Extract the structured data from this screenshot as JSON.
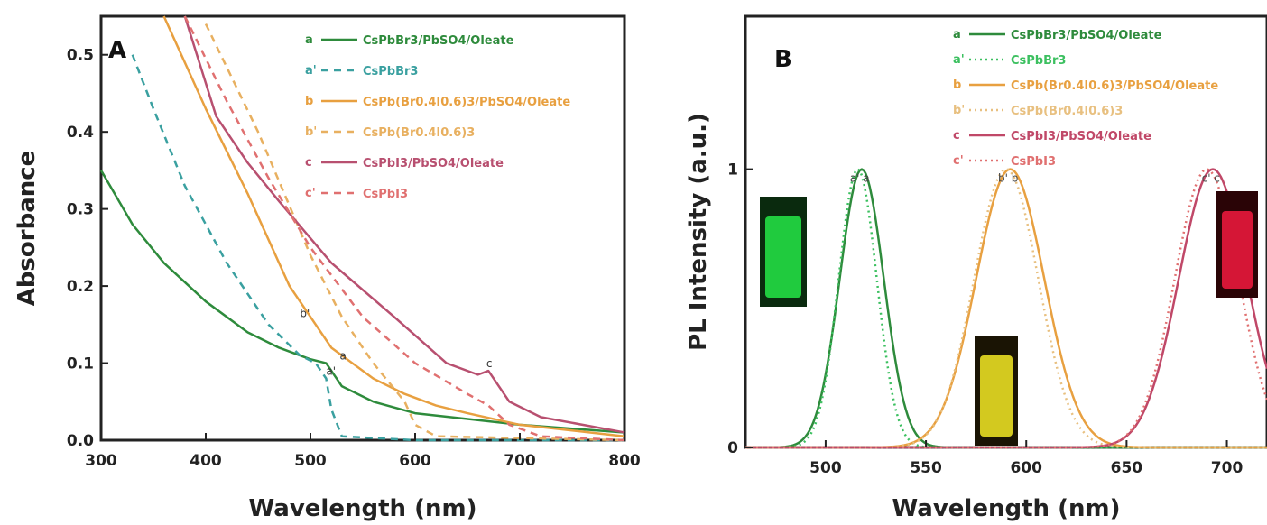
{
  "chart_data": [
    {
      "panel": "A",
      "type": "line",
      "xlabel": "Wavelength (nm)",
      "ylabel": "Absorbance",
      "xlim": [
        300,
        800
      ],
      "ylim": [
        0.0,
        0.55
      ],
      "xticks": [
        300,
        400,
        500,
        600,
        700,
        800
      ],
      "yticks": [
        0.0,
        0.1,
        0.2,
        0.3,
        0.4,
        0.5
      ],
      "ytick_labels": [
        "0.0",
        "0.1",
        "0.2",
        "0.3",
        "0.4",
        "0.5"
      ],
      "legend_position": "top-right",
      "series": [
        {
          "name": "CsPbBr3/PbSO4/Oleate",
          "tag": "a",
          "color": "#2e8b3c",
          "dash": "solid",
          "x": [
            300,
            330,
            360,
            400,
            440,
            470,
            500,
            515,
            530,
            560,
            600,
            700,
            800
          ],
          "y": [
            0.35,
            0.28,
            0.23,
            0.18,
            0.14,
            0.12,
            0.105,
            0.1,
            0.07,
            0.05,
            0.035,
            0.02,
            0.01
          ]
        },
        {
          "name": "CsPbBr3",
          "tag": "a'",
          "color": "#3aa0a0",
          "dash": "dashed",
          "x": [
            330,
            350,
            380,
            420,
            460,
            490,
            505,
            515,
            520,
            530,
            600,
            800
          ],
          "y": [
            0.5,
            0.43,
            0.33,
            0.23,
            0.15,
            0.11,
            0.1,
            0.08,
            0.04,
            0.005,
            0.0,
            0.0
          ]
        },
        {
          "name": "CsPb(Br0.4I0.6)3/PbSO4/Oleate",
          "tag": "b",
          "color": "#e8a040",
          "dash": "solid",
          "x": [
            360,
            400,
            440,
            480,
            520,
            560,
            590,
            620,
            650,
            700,
            800
          ],
          "y": [
            0.56,
            0.43,
            0.32,
            0.2,
            0.12,
            0.08,
            0.06,
            0.045,
            0.035,
            0.02,
            0.005
          ]
        },
        {
          "name": "CsPb(Br0.4I0.6)3",
          "tag": "b'",
          "color": "#e8b060",
          "dash": "dashed",
          "x": [
            400,
            450,
            500,
            530,
            560,
            590,
            600,
            620,
            800
          ],
          "y": [
            0.54,
            0.4,
            0.24,
            0.16,
            0.1,
            0.05,
            0.02,
            0.005,
            0.0
          ]
        },
        {
          "name": "CsPbI3/PbSO4/Oleate",
          "tag": "c",
          "color": "#b85070",
          "dash": "solid",
          "x": [
            380,
            410,
            440,
            470,
            520,
            580,
            630,
            660,
            670,
            690,
            720,
            800
          ],
          "y": [
            0.55,
            0.42,
            0.36,
            0.31,
            0.23,
            0.16,
            0.1,
            0.085,
            0.09,
            0.05,
            0.03,
            0.01
          ]
        },
        {
          "name": "CsPbI3",
          "tag": "c'",
          "color": "#e07070",
          "dash": "dashed",
          "x": [
            380,
            420,
            460,
            500,
            550,
            600,
            650,
            670,
            690,
            720,
            800
          ],
          "y": [
            0.55,
            0.44,
            0.34,
            0.25,
            0.16,
            0.1,
            0.06,
            0.045,
            0.02,
            0.005,
            0.0
          ]
        }
      ],
      "annotations": [
        {
          "text": "a'",
          "x": 515,
          "y": 0.085
        },
        {
          "text": "a",
          "x": 528,
          "y": 0.105
        },
        {
          "text": "b'",
          "x": 490,
          "y": 0.16
        },
        {
          "text": "c",
          "x": 668,
          "y": 0.095
        }
      ]
    },
    {
      "panel": "B",
      "type": "line",
      "xlabel": "Wavelength (nm)",
      "ylabel": "PL Intensity (a.u.)",
      "xlim": [
        460,
        720
      ],
      "ylim": [
        0,
        1.55
      ],
      "xticks": [
        500,
        550,
        600,
        650,
        700
      ],
      "yticks": [
        0,
        1
      ],
      "ytick_labels": [
        "0",
        "1"
      ],
      "legend_position": "top-right",
      "series": [
        {
          "name": "CsPbBr3/PbSO4/Oleate",
          "tag": "a",
          "color": "#2e8b3c",
          "dash": "solid",
          "center": 518,
          "width": 11,
          "peak": 1.0
        },
        {
          "name": "CsPbBr3",
          "tag": "a'",
          "color": "#3cc060",
          "dash": "dotted",
          "center": 516,
          "width": 9.5,
          "peak": 1.0
        },
        {
          "name": "CsPb(Br0.4I0.6)3/PbSO4/Oleate",
          "tag": "b",
          "color": "#e8a040",
          "dash": "solid",
          "center": 592,
          "width": 17,
          "peak": 1.0
        },
        {
          "name": "CsPb(Br0.4I0.6)3",
          "tag": "b'",
          "color": "#e8c080",
          "dash": "dotted",
          "center": 590,
          "width": 16,
          "peak": 1.0
        },
        {
          "name": "CsPbI3/PbSO4/Oleate",
          "tag": "c",
          "color": "#c04868",
          "dash": "solid",
          "center": 693,
          "width": 17,
          "peak": 1.0
        },
        {
          "name": "CsPbI3",
          "tag": "c'",
          "color": "#e07070",
          "dash": "dotted",
          "center": 690,
          "width": 16,
          "peak": 1.0
        }
      ],
      "peak_labels": [
        {
          "text": "a' a",
          "x": 517
        },
        {
          "text": "b' b",
          "x": 591
        },
        {
          "text": "c' c",
          "x": 692
        }
      ]
    }
  ]
}
